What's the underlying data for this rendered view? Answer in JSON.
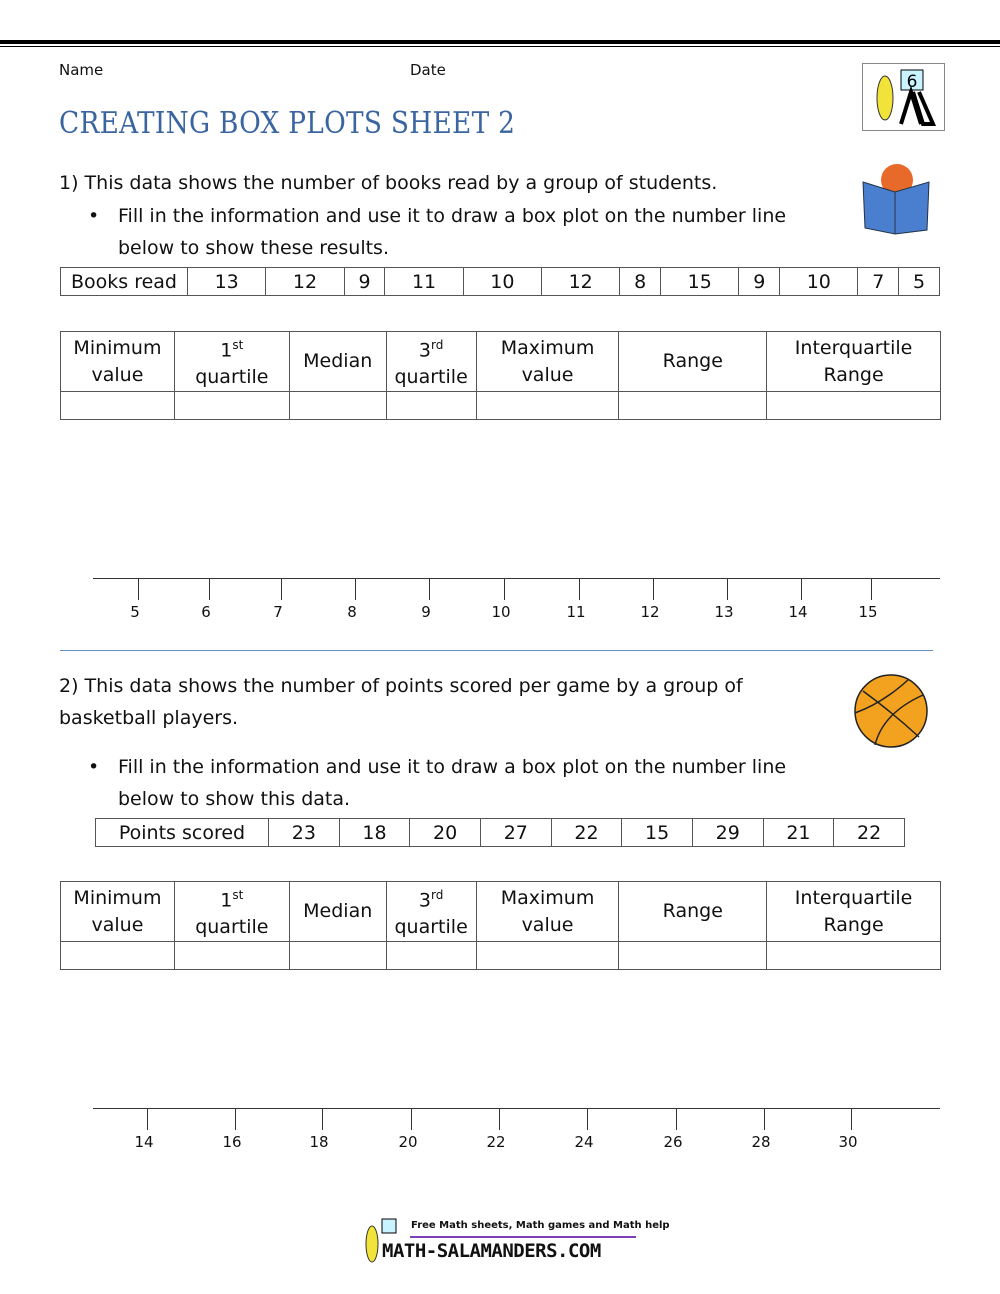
{
  "header": {
    "name_label": "Name",
    "date_label": "Date",
    "title": "CREATING BOX PLOTS SHEET 2",
    "grade_badge": "6"
  },
  "q1": {
    "prompt": "1) This data shows the number of books read by a group of students.",
    "bullet_line1": "Fill in the information and use it to draw a box plot on the number line",
    "bullet_line2": "below to show these results.",
    "data_label": "Books read",
    "values": [
      "13",
      "12",
      "9",
      "11",
      "10",
      "12",
      "8",
      "15",
      "9",
      "10",
      "7",
      "5"
    ],
    "number_line": [
      "5",
      "6",
      "7",
      "8",
      "9",
      "10",
      "11",
      "12",
      "13",
      "14",
      "15"
    ]
  },
  "q2": {
    "prompt_line1": "2) This data shows the number of points scored per game by a group of",
    "prompt_line2": "basketball players.",
    "bullet_line1": "Fill in the information and use it to draw a box plot on the number line",
    "bullet_line2": "below to show this data.",
    "data_label": "Points scored",
    "values": [
      "23",
      "18",
      "20",
      "27",
      "22",
      "15",
      "29",
      "21",
      "22"
    ],
    "number_line": [
      "14",
      "16",
      "18",
      "20",
      "22",
      "24",
      "26",
      "28",
      "30"
    ]
  },
  "summary_table": {
    "min": [
      "Minimum",
      "value"
    ],
    "q1": [
      "1",
      "st",
      "quartile"
    ],
    "median": "Median",
    "q3": [
      "3",
      "rd",
      "quartile"
    ],
    "max": [
      "Maximum",
      "value"
    ],
    "range": "Range",
    "iqr": [
      "Interquartile",
      "Range"
    ]
  },
  "footer": {
    "tagline": "Free Math sheets, Math games and Math help",
    "site": "MATH-SALAMANDERS.COM"
  },
  "colors": {
    "title": "#3a65a0",
    "divider": "#6a8fc8"
  }
}
